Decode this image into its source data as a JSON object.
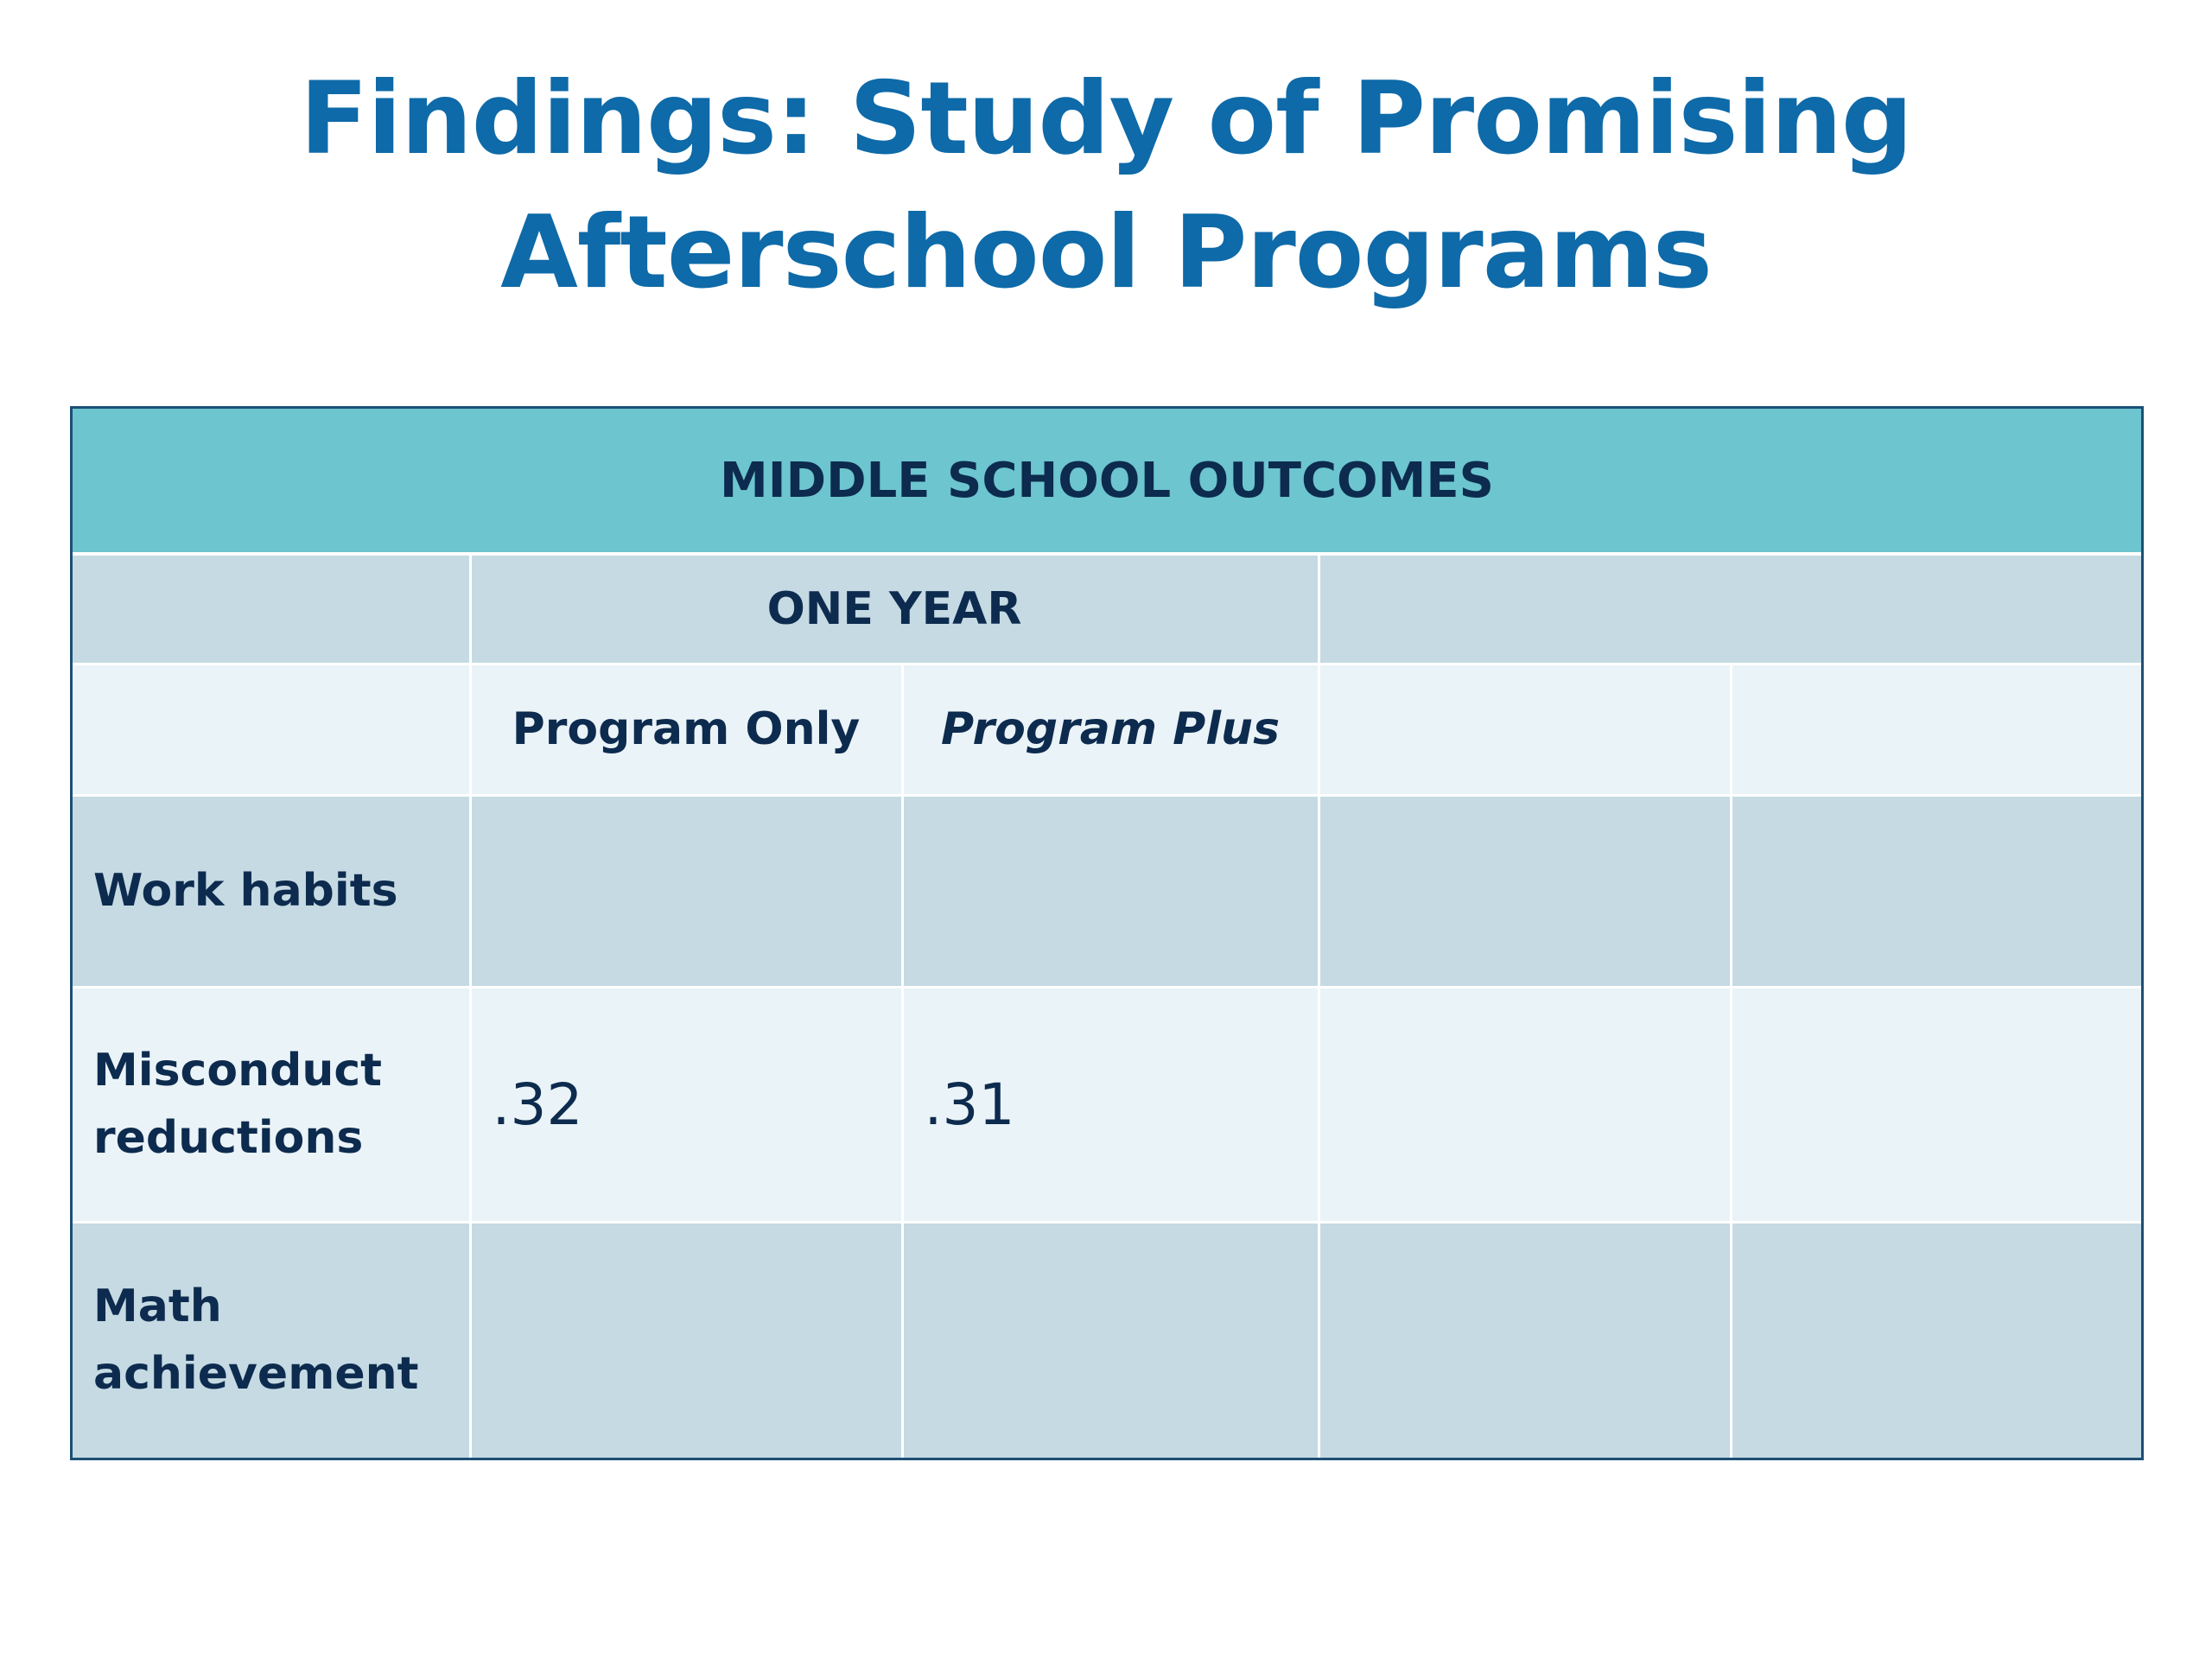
{
  "slide": {
    "title": "Findings: Study of Promising Afterschool Programs"
  },
  "table": {
    "header": "MIDDLE SCHOOL OUTCOMES",
    "period_label": "ONE YEAR",
    "period_blank": "",
    "subheaders": [
      "Program Only",
      "Program Plus",
      "",
      ""
    ],
    "rows": [
      {
        "label": "Work habits",
        "values": [
          "",
          "",
          "",
          ""
        ]
      },
      {
        "label": "Misconduct reductions",
        "values": [
          ".32",
          ".31",
          "",
          ""
        ]
      },
      {
        "label": "Math achievement",
        "values": [
          "",
          "",
          "",
          ""
        ]
      }
    ]
  },
  "colors": {
    "title": "#0e6aa8",
    "header_band": "#6cc5cf",
    "row_dark": "#c5dae3",
    "row_light": "#eaf3f7",
    "border": "#1d4f75",
    "text": "#0d2b4e"
  }
}
